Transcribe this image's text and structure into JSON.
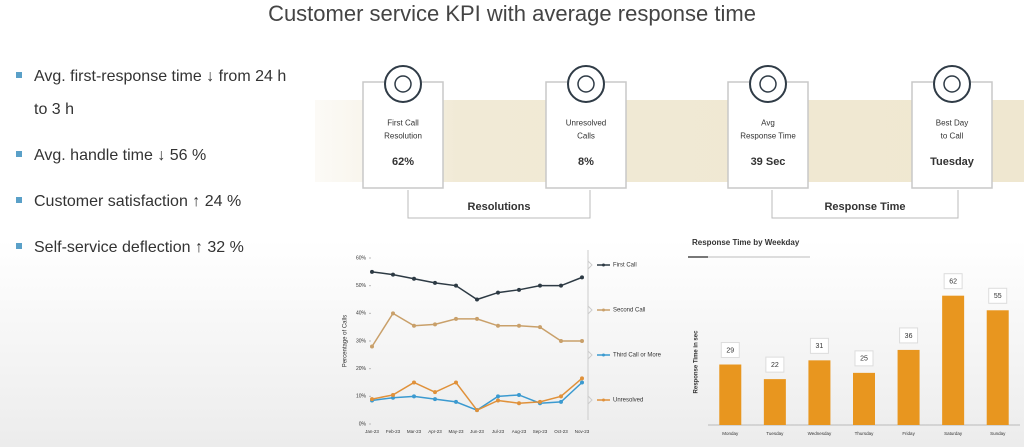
{
  "title": "Customer service KPI with average response time",
  "bullets": [
    "Avg. first-response time ↓ from 24 h to 3 h",
    "Avg. handle time ↓ 56 %",
    "Customer satisfaction ↑ 24 %",
    "Self-service deflection ↑ 32 %"
  ],
  "kpis": [
    {
      "label": [
        "First Call",
        "Resolution"
      ],
      "value": "62%"
    },
    {
      "label": [
        "Unresolved",
        "Calls"
      ],
      "value": "8%"
    },
    {
      "label": [
        "Avg",
        "Response Time"
      ],
      "value": "39 Sec"
    },
    {
      "label": [
        "Best Day",
        "to Call"
      ],
      "value": "Tuesday"
    }
  ],
  "groups": [
    "Resolutions",
    "Response Time"
  ],
  "chart_data": [
    {
      "type": "line",
      "y_label": "Percentage of Calls",
      "categories": [
        "Jan-23",
        "Feb-23",
        "Mar-23",
        "Apr-23",
        "May-23",
        "Jun-23",
        "Jul-23",
        "Aug-23",
        "Sep-23",
        "Oct-23",
        "Nov-23"
      ],
      "ylim": [
        0,
        60
      ],
      "yticks": [
        {
          "value": 0,
          "label": "0%"
        },
        {
          "value": 10,
          "label": "10%"
        },
        {
          "value": 20,
          "label": "20%"
        },
        {
          "value": 30,
          "label": "30%"
        },
        {
          "value": 40,
          "label": "40%"
        },
        {
          "value": 50,
          "label": "50%"
        },
        {
          "value": 60,
          "label": "60%"
        }
      ],
      "series": [
        {
          "name": "First Call",
          "color": "#2d3a44",
          "values": [
            55,
            54,
            52.5,
            51,
            50,
            45,
            47.5,
            48.5,
            50,
            50,
            53
          ]
        },
        {
          "name": "Second Call",
          "color": "#c9a06a",
          "values": [
            28,
            40,
            35.5,
            36,
            38,
            38,
            35.5,
            35.5,
            35,
            30,
            30
          ]
        },
        {
          "name": "Third Call or More",
          "color": "#3b9ad0",
          "values": [
            8.5,
            9.5,
            10,
            9,
            8,
            5,
            10,
            10.5,
            7.5,
            8,
            15
          ]
        },
        {
          "name": "Unresolved",
          "color": "#e0913a",
          "values": [
            9,
            10.5,
            15,
            11.5,
            15,
            5,
            8.5,
            7.5,
            8,
            10,
            16.5
          ]
        }
      ]
    },
    {
      "type": "bar",
      "title": "Response Time by Weekday",
      "y_label": "Response Time in sec",
      "categories": [
        "Monday",
        "Tuesday",
        "Wednesday",
        "Thursday",
        "Friday",
        "Saturday",
        "Sunday"
      ],
      "values": [
        29,
        22,
        31,
        25,
        36,
        62,
        55
      ],
      "color": "#e8961f",
      "ylim": [
        0,
        70
      ]
    }
  ]
}
